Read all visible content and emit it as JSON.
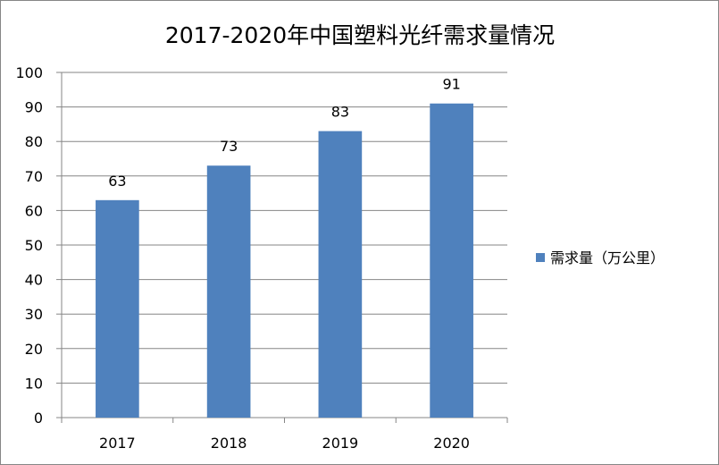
{
  "chart_data": {
    "type": "bar",
    "title": "2017-2020年中国塑料光纤需求量情况",
    "categories": [
      "2017",
      "2018",
      "2019",
      "2020"
    ],
    "series": [
      {
        "name": "需求量（万公里）",
        "values": [
          63,
          73,
          83,
          91
        ],
        "color": "#4F81BD"
      }
    ],
    "ylim": [
      0,
      100
    ],
    "yticks": [
      0,
      10,
      20,
      30,
      40,
      50,
      60,
      70,
      80,
      90,
      100
    ],
    "grid": true,
    "legend_position": "right",
    "data_labels": true
  }
}
